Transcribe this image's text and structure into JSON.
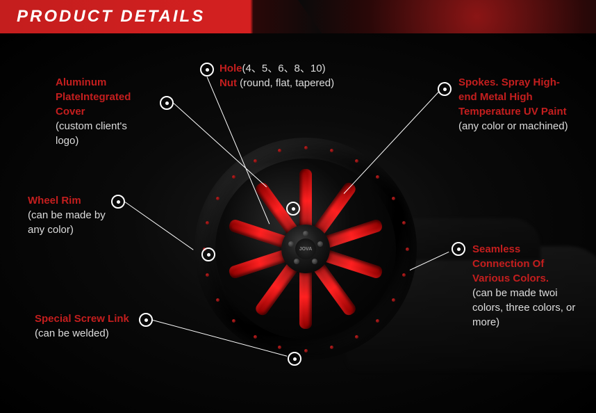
{
  "header": {
    "title": "PRODUCT DETAILS"
  },
  "brand": "JOVA",
  "colors": {
    "accent_red": "#c41e1e",
    "spoke_red": "#d42020",
    "text_white": "#ffffff",
    "text_sub": "#dddddd",
    "bg_dark": "#0a0a0a"
  },
  "wheel": {
    "spoke_count": 10,
    "hub_bolt_count": 5,
    "rim_bolt_count": 24
  },
  "callouts": {
    "aluminum": {
      "title": "Aluminum PlateIntegrated Cover",
      "sub": "(custom client's logo)"
    },
    "hole": {
      "label": "Hole",
      "values": "(4、5、6、8、10)"
    },
    "nut": {
      "label": "Nut",
      "values": "(round, flat, tapered)"
    },
    "spokes": {
      "title": "Spokes. Spray High-end Metal High Temperature UV Paint",
      "sub": "(any color or machined)"
    },
    "rim": {
      "title": "Wheel  Rim",
      "sub": "(can be made by any color)"
    },
    "seamless": {
      "title": "Seamless Connection Of  Various Colors.",
      "sub": "(can be made twoi colors, three colors, or more)"
    },
    "screw": {
      "title": "Special Screw Link",
      "sub": "(can be welded)"
    }
  }
}
